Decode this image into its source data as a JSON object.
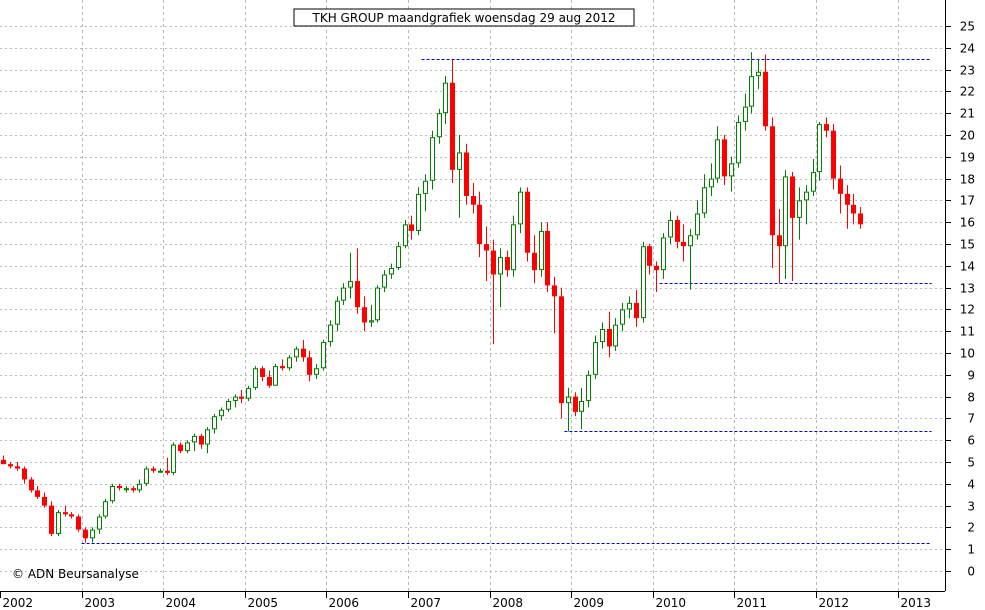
{
  "chart_data": {
    "type": "candlestick",
    "title": "TKH GROUP maandgrafiek woensdag 29 aug 2012",
    "watermark": "© ADN Beursanalyse",
    "xlabel": "",
    "ylabel": "",
    "ylim": [
      0,
      25
    ],
    "y_ticks": [
      "0",
      "1",
      "2",
      "3",
      "4",
      "5",
      "6",
      "7",
      "8",
      "9",
      "10",
      "11",
      "12",
      "13",
      "14",
      "15",
      "16",
      "17",
      "18",
      "19",
      "20",
      "21",
      "22",
      "23",
      "24",
      "25"
    ],
    "x_tick_labels": [
      "2002",
      "2003",
      "2004",
      "2005",
      "2006",
      "2007",
      "2008",
      "2009",
      "2010",
      "2011",
      "2012",
      "2013"
    ],
    "grid": true,
    "colors": {
      "up": "#008000",
      "down": "#ff0000",
      "reference": "#0000cc",
      "grid": "#bbbbbb"
    },
    "reference_lines": [
      {
        "value": 23.5,
        "from": "2007-03",
        "to": "2013-06"
      },
      {
        "value": 13.2,
        "from": "2010-02",
        "to": "2013-06"
      },
      {
        "value": 6.4,
        "from": "2008-12",
        "to": "2013-06"
      },
      {
        "value": 1.3,
        "from": "2003-01",
        "to": "2013-06"
      }
    ],
    "series": [
      {
        "columns": [
          "month",
          "open",
          "high",
          "low",
          "close"
        ],
        "values": [
          [
            "2002-01",
            5.1,
            5.3,
            4.9,
            4.9
          ],
          [
            "2002-02",
            4.9,
            5.0,
            4.7,
            4.8
          ],
          [
            "2002-03",
            4.8,
            5.0,
            4.6,
            4.7
          ],
          [
            "2002-04",
            4.7,
            4.8,
            4.0,
            4.2
          ],
          [
            "2002-05",
            4.2,
            4.3,
            3.6,
            3.7
          ],
          [
            "2002-06",
            3.7,
            3.9,
            3.3,
            3.4
          ],
          [
            "2002-07",
            3.4,
            3.6,
            2.9,
            3.0
          ],
          [
            "2002-08",
            3.0,
            3.2,
            1.6,
            1.7
          ],
          [
            "2002-09",
            1.7,
            2.8,
            1.6,
            2.7
          ],
          [
            "2002-10",
            2.7,
            3.0,
            2.5,
            2.6
          ],
          [
            "2002-11",
            2.6,
            2.7,
            2.4,
            2.5
          ],
          [
            "2002-12",
            2.5,
            2.6,
            1.8,
            1.9
          ],
          [
            "2003-01",
            1.9,
            2.0,
            1.3,
            1.5
          ],
          [
            "2003-02",
            1.5,
            2.0,
            1.3,
            1.9
          ],
          [
            "2003-03",
            1.9,
            2.6,
            1.7,
            2.5
          ],
          [
            "2003-04",
            2.5,
            3.3,
            2.4,
            3.2
          ],
          [
            "2003-05",
            3.2,
            4.0,
            3.1,
            3.9
          ],
          [
            "2003-06",
            3.9,
            4.0,
            3.7,
            3.8
          ],
          [
            "2003-07",
            3.8,
            3.9,
            3.6,
            3.8
          ],
          [
            "2003-08",
            3.8,
            3.9,
            3.6,
            3.7
          ],
          [
            "2003-09",
            3.7,
            4.2,
            3.6,
            4.0
          ],
          [
            "2003-10",
            4.0,
            4.8,
            3.9,
            4.7
          ],
          [
            "2003-11",
            4.7,
            4.8,
            4.5,
            4.6
          ],
          [
            "2003-12",
            4.6,
            4.7,
            4.5,
            4.6
          ],
          [
            "2004-01",
            4.6,
            5.2,
            4.4,
            4.5
          ],
          [
            "2004-02",
            4.5,
            5.9,
            4.4,
            5.8
          ],
          [
            "2004-03",
            5.8,
            5.9,
            5.4,
            5.5
          ],
          [
            "2004-04",
            5.5,
            6.0,
            5.4,
            5.9
          ],
          [
            "2004-05",
            5.9,
            6.3,
            5.5,
            6.2
          ],
          [
            "2004-06",
            6.2,
            6.3,
            5.6,
            5.8
          ],
          [
            "2004-07",
            5.8,
            6.6,
            5.4,
            6.5
          ],
          [
            "2004-08",
            6.5,
            7.2,
            6.3,
            7.1
          ],
          [
            "2004-09",
            7.1,
            7.5,
            6.9,
            7.4
          ],
          [
            "2004-10",
            7.4,
            7.9,
            7.3,
            7.8
          ],
          [
            "2004-11",
            7.8,
            8.1,
            7.5,
            8.0
          ],
          [
            "2004-12",
            8.0,
            8.3,
            7.7,
            7.9
          ],
          [
            "2005-01",
            7.9,
            8.5,
            7.8,
            8.4
          ],
          [
            "2005-02",
            8.4,
            9.4,
            8.3,
            9.3
          ],
          [
            "2005-03",
            9.3,
            9.4,
            8.7,
            8.9
          ],
          [
            "2005-04",
            8.9,
            9.2,
            8.4,
            8.5
          ],
          [
            "2005-05",
            8.5,
            9.5,
            8.5,
            9.4
          ],
          [
            "2005-06",
            9.4,
            9.7,
            9.2,
            9.3
          ],
          [
            "2005-07",
            9.3,
            9.9,
            9.2,
            9.8
          ],
          [
            "2005-08",
            9.8,
            10.3,
            9.6,
            10.2
          ],
          [
            "2005-09",
            10.2,
            10.6,
            9.6,
            9.8
          ],
          [
            "2005-10",
            9.8,
            10.1,
            8.7,
            9.0
          ],
          [
            "2005-11",
            9.0,
            9.5,
            8.8,
            9.3
          ],
          [
            "2005-12",
            9.3,
            10.6,
            9.2,
            10.5
          ],
          [
            "2006-01",
            10.5,
            11.5,
            10.3,
            11.3
          ],
          [
            "2006-02",
            11.3,
            12.6,
            11.0,
            12.4
          ],
          [
            "2006-03",
            12.4,
            13.2,
            12.2,
            13.0
          ],
          [
            "2006-04",
            13.0,
            14.6,
            12.5,
            13.3
          ],
          [
            "2006-05",
            13.3,
            14.8,
            11.8,
            12.1
          ],
          [
            "2006-06",
            12.1,
            12.6,
            11.0,
            11.4
          ],
          [
            "2006-07",
            11.4,
            12.2,
            11.2,
            11.5
          ],
          [
            "2006-08",
            11.5,
            13.1,
            11.4,
            13.0
          ],
          [
            "2006-09",
            13.0,
            13.8,
            12.8,
            13.6
          ],
          [
            "2006-10",
            13.6,
            14.1,
            13.4,
            13.9
          ],
          [
            "2006-11",
            13.9,
            15.1,
            13.8,
            14.9
          ],
          [
            "2006-12",
            14.9,
            16.1,
            14.8,
            15.9
          ],
          [
            "2007-01",
            15.9,
            16.3,
            15.2,
            15.6
          ],
          [
            "2007-02",
            15.6,
            17.6,
            15.4,
            17.3
          ],
          [
            "2007-03",
            17.3,
            18.2,
            16.5,
            17.9
          ],
          [
            "2007-04",
            17.9,
            20.2,
            17.5,
            19.9
          ],
          [
            "2007-05",
            19.9,
            21.2,
            19.6,
            21.0
          ],
          [
            "2007-06",
            21.0,
            22.7,
            20.5,
            22.4
          ],
          [
            "2007-07",
            22.4,
            23.5,
            17.8,
            18.4
          ],
          [
            "2007-08",
            18.4,
            20.0,
            16.2,
            19.2
          ],
          [
            "2007-09",
            19.2,
            19.6,
            16.8,
            17.2
          ],
          [
            "2007-10",
            17.2,
            17.8,
            16.4,
            16.8
          ],
          [
            "2007-11",
            16.8,
            17.4,
            14.4,
            15.0
          ],
          [
            "2007-12",
            15.0,
            15.8,
            13.3,
            14.7
          ],
          [
            "2008-01",
            14.7,
            15.2,
            10.4,
            13.6
          ],
          [
            "2008-02",
            13.6,
            14.8,
            12.1,
            14.4
          ],
          [
            "2008-03",
            14.4,
            14.7,
            13.5,
            13.8
          ],
          [
            "2008-04",
            13.8,
            16.3,
            13.5,
            15.9
          ],
          [
            "2008-05",
            15.9,
            17.6,
            15.5,
            17.4
          ],
          [
            "2008-06",
            17.4,
            17.6,
            14.2,
            14.6
          ],
          [
            "2008-07",
            14.6,
            15.4,
            13.2,
            13.8
          ],
          [
            "2008-08",
            13.8,
            16.0,
            13.5,
            15.6
          ],
          [
            "2008-09",
            15.6,
            16.0,
            12.8,
            13.1
          ],
          [
            "2008-10",
            13.1,
            13.5,
            10.9,
            12.6
          ],
          [
            "2008-11",
            12.6,
            13.0,
            7.0,
            7.7
          ],
          [
            "2008-12",
            7.7,
            8.4,
            6.4,
            8.0
          ],
          [
            "2009-01",
            8.0,
            8.2,
            7.1,
            7.3
          ],
          [
            "2009-02",
            7.3,
            8.4,
            6.5,
            7.8
          ],
          [
            "2009-03",
            7.8,
            9.2,
            7.5,
            9.0
          ],
          [
            "2009-04",
            9.0,
            10.8,
            8.8,
            10.5
          ],
          [
            "2009-05",
            10.5,
            11.4,
            10.2,
            11.1
          ],
          [
            "2009-06",
            11.1,
            11.9,
            9.8,
            10.3
          ],
          [
            "2009-07",
            10.3,
            11.6,
            10.1,
            11.3
          ],
          [
            "2009-08",
            11.3,
            12.3,
            11.0,
            12.0
          ],
          [
            "2009-09",
            12.0,
            12.6,
            11.6,
            12.3
          ],
          [
            "2009-10",
            12.3,
            12.9,
            11.2,
            11.6
          ],
          [
            "2009-11",
            11.6,
            15.1,
            11.4,
            14.9
          ],
          [
            "2009-12",
            14.9,
            15.0,
            13.6,
            14.0
          ],
          [
            "2010-01",
            14.0,
            14.2,
            12.8,
            13.8
          ],
          [
            "2010-02",
            13.8,
            15.5,
            13.4,
            15.3
          ],
          [
            "2010-03",
            15.3,
            16.5,
            15.0,
            16.1
          ],
          [
            "2010-04",
            16.1,
            16.3,
            14.8,
            15.1
          ],
          [
            "2010-05",
            15.1,
            15.9,
            14.2,
            14.9
          ],
          [
            "2010-06",
            14.9,
            15.7,
            12.9,
            15.4
          ],
          [
            "2010-07",
            15.4,
            17.0,
            15.2,
            16.4
          ],
          [
            "2010-08",
            16.4,
            18.2,
            16.2,
            17.6
          ],
          [
            "2010-09",
            17.6,
            18.7,
            17.2,
            18.0
          ],
          [
            "2010-10",
            18.0,
            20.4,
            17.8,
            19.8
          ],
          [
            "2010-11",
            19.8,
            20.0,
            17.7,
            18.1
          ],
          [
            "2010-12",
            18.1,
            19.0,
            17.4,
            18.7
          ],
          [
            "2011-01",
            18.7,
            20.9,
            18.5,
            20.6
          ],
          [
            "2011-02",
            20.6,
            21.9,
            20.2,
            21.3
          ],
          [
            "2011-03",
            21.3,
            23.8,
            21.0,
            22.7
          ],
          [
            "2011-04",
            22.7,
            23.5,
            22.1,
            22.9
          ],
          [
            "2011-05",
            22.9,
            23.7,
            20.2,
            20.4
          ],
          [
            "2011-06",
            20.4,
            20.8,
            13.9,
            15.4
          ],
          [
            "2011-07",
            15.4,
            16.6,
            13.2,
            14.9
          ],
          [
            "2011-08",
            14.9,
            18.4,
            13.4,
            18.1
          ],
          [
            "2011-09",
            18.1,
            18.3,
            13.3,
            16.2
          ],
          [
            "2011-10",
            16.2,
            17.6,
            15.2,
            17.0
          ],
          [
            "2011-11",
            17.0,
            17.7,
            15.9,
            17.4
          ],
          [
            "2011-12",
            17.4,
            18.9,
            17.2,
            18.3
          ],
          [
            "2012-01",
            18.3,
            20.6,
            17.9,
            20.5
          ],
          [
            "2012-02",
            20.5,
            20.8,
            19.9,
            20.2
          ],
          [
            "2012-03",
            20.2,
            20.5,
            17.5,
            18.0
          ],
          [
            "2012-04",
            18.0,
            18.6,
            16.4,
            17.3
          ],
          [
            "2012-05",
            17.3,
            17.7,
            15.7,
            16.8
          ],
          [
            "2012-06",
            16.8,
            17.3,
            15.9,
            16.4
          ],
          [
            "2012-07",
            16.4,
            16.7,
            15.7,
            15.9
          ]
        ]
      }
    ]
  }
}
